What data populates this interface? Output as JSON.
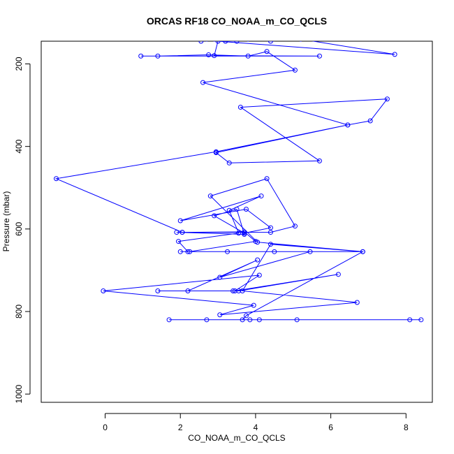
{
  "chart_data": {
    "type": "line",
    "title": "ORCAS RF18 CO_NOAA_m_CO_QCLS",
    "xlabel": "CO_NOAA_m_CO_QCLS",
    "ylabel": "Pressure (mbar)",
    "xlim": [
      -1.7,
      8.7
    ],
    "ylim": [
      1020,
      145
    ],
    "y_reversed": true,
    "x_ticks": [
      0,
      2,
      4,
      6,
      8
    ],
    "y_ticks": [
      200,
      400,
      600,
      800,
      1000
    ],
    "grid": false,
    "series_color": "#0000ff",
    "series": [
      {
        "points": [
          [
            2.7,
            140
          ],
          [
            2.55,
            145
          ],
          [
            2.9,
            140
          ],
          [
            3.2,
            145
          ],
          [
            3.5,
            145
          ],
          [
            3.8,
            140
          ],
          [
            4.4,
            145
          ],
          [
            5.2,
            140
          ],
          [
            7.7,
            177
          ],
          [
            3.0,
            145
          ],
          [
            2.9,
            180
          ],
          [
            5.7,
            181
          ],
          [
            0.95,
            181
          ],
          [
            1.4,
            181
          ],
          [
            2.75,
            178
          ],
          [
            3.8,
            181
          ],
          [
            4.3,
            170
          ],
          [
            5.05,
            215
          ],
          [
            2.6,
            245
          ],
          [
            6.45,
            348
          ],
          [
            7.05,
            338
          ],
          [
            7.5,
            285
          ],
          [
            3.6,
            305
          ],
          [
            5.7,
            435
          ],
          [
            3.3,
            440
          ],
          [
            2.95,
            415
          ],
          [
            6.45,
            348
          ],
          [
            2.95,
            413
          ],
          [
            -1.3,
            478
          ],
          [
            2.05,
            608
          ],
          [
            4.4,
            608
          ],
          [
            5.05,
            593
          ],
          [
            4.3,
            478
          ],
          [
            2.8,
            520
          ],
          [
            4.05,
            632
          ],
          [
            6.85,
            655
          ],
          [
            2.2,
            655
          ],
          [
            1.95,
            630
          ],
          [
            3.55,
            610
          ],
          [
            3.3,
            555
          ],
          [
            4.15,
            520
          ],
          [
            2.0,
            580
          ],
          [
            3.75,
            552
          ],
          [
            4.4,
            597
          ],
          [
            3.7,
            610
          ],
          [
            2.9,
            568
          ],
          [
            3.5,
            552
          ],
          [
            3.7,
            613
          ],
          [
            1.9,
            608
          ],
          [
            2.05,
            608
          ],
          [
            3.7,
            607
          ],
          [
            4.0,
            630
          ],
          [
            2.25,
            655
          ],
          [
            2.0,
            655
          ],
          [
            3.25,
            655
          ],
          [
            4.5,
            655
          ],
          [
            5.45,
            655
          ],
          [
            3.05,
            717
          ],
          [
            4.05,
            675
          ],
          [
            2.2,
            750
          ],
          [
            1.4,
            750
          ],
          [
            3.4,
            750
          ],
          [
            3.55,
            750
          ],
          [
            6.2,
            710
          ],
          [
            3.45,
            750
          ],
          [
            4.1,
            712
          ],
          [
            -0.05,
            750
          ],
          [
            3.95,
            785
          ],
          [
            3.05,
            808
          ],
          [
            6.7,
            778
          ],
          [
            3.65,
            750
          ],
          [
            4.4,
            637
          ],
          [
            6.85,
            655
          ],
          [
            3.75,
            810
          ],
          [
            3.65,
            820
          ],
          [
            1.7,
            820
          ],
          [
            2.7,
            820
          ],
          [
            3.85,
            820
          ],
          [
            4.1,
            820
          ],
          [
            5.1,
            820
          ],
          [
            8.1,
            820
          ],
          [
            8.4,
            820
          ]
        ]
      }
    ]
  }
}
